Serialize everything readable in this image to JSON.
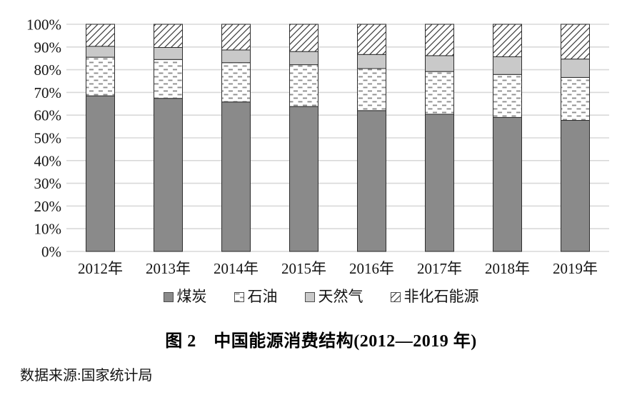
{
  "figure": {
    "title": "图 2　中国能源消费结构(2012—2019 年)",
    "source": "数据来源:国家统计局"
  },
  "chart_data": {
    "type": "bar",
    "variant": "stacked-percent",
    "title": "图 2　中国能源消费结构(2012—2019 年)",
    "source": "数据来源:国家统计局",
    "xlabel": "",
    "ylabel": "",
    "unit": "%",
    "ylim": [
      0,
      100
    ],
    "y_tick_interval": 10,
    "y_ticks": [
      "0%",
      "10%",
      "20%",
      "30%",
      "40%",
      "50%",
      "60%",
      "70%",
      "80%",
      "90%",
      "100%"
    ],
    "grid": true,
    "legend_position": "bottom",
    "categories": [
      "2012年",
      "2013年",
      "2014年",
      "2015年",
      "2016年",
      "2017年",
      "2018年",
      "2019年"
    ],
    "series": [
      {
        "name": "煤炭",
        "key": "coal",
        "fill": "solid",
        "color": "#8a8a8a",
        "values": [
          68.5,
          67.4,
          65.8,
          63.8,
          62.0,
          60.4,
          59.0,
          57.7
        ]
      },
      {
        "name": "石油",
        "key": "oil",
        "fill": "pattern-dashes",
        "color": "#8f8f8f",
        "values": [
          17.0,
          17.1,
          17.3,
          18.4,
          18.5,
          18.8,
          18.9,
          18.9
        ]
      },
      {
        "name": "天然气",
        "key": "natural-gas",
        "fill": "solid",
        "color": "#c9c9c9",
        "values": [
          4.8,
          5.3,
          5.6,
          5.8,
          6.2,
          7.0,
          7.8,
          8.1
        ]
      },
      {
        "name": "非化石能源",
        "key": "non-fossil",
        "fill": "pattern-hatch",
        "color": "#3c3c3c",
        "values": [
          9.7,
          10.2,
          11.3,
          12.0,
          13.3,
          13.8,
          14.3,
          15.3
        ]
      }
    ],
    "colors": {
      "border": "#2e2e2e",
      "gridline": "#d9d9d9",
      "text": "#141414",
      "background": "#ffffff"
    }
  }
}
